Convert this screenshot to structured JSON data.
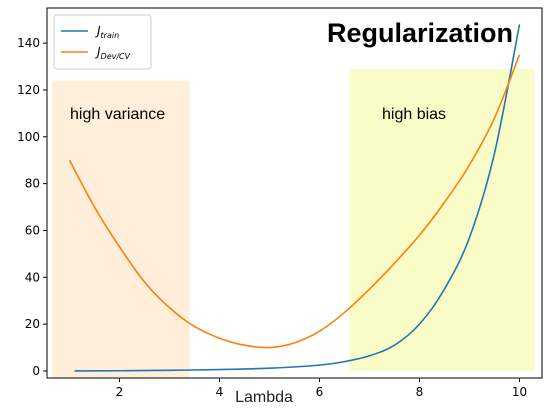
{
  "chart_data": {
    "type": "line",
    "title": "Regularization",
    "xlabel": "Lambda",
    "ylabel": "",
    "xlim": [
      0.55,
      10.45
    ],
    "ylim": [
      -3,
      155
    ],
    "xticks": [
      2,
      4,
      6,
      8,
      10
    ],
    "yticks": [
      0,
      20,
      40,
      60,
      80,
      100,
      120,
      140
    ],
    "legend_position": "top-left",
    "series": [
      {
        "name": "J_train",
        "name_main": "J",
        "name_sub": "train",
        "color": "#1f77b4",
        "x": [
          1.1,
          2,
          3,
          4,
          5,
          6,
          6.5,
          7,
          7.5,
          8,
          8.5,
          9,
          9.5,
          10
        ],
        "y": [
          0,
          0.1,
          0.3,
          0.6,
          1.2,
          2.5,
          4,
          6.5,
          11,
          20,
          35,
          57,
          93,
          148
        ]
      },
      {
        "name": "J_Dev/CV",
        "name_main": "J",
        "name_sub": "Dev/CV",
        "color": "#ff7f0e",
        "x": [
          1.0,
          1.5,
          2,
          2.5,
          3,
          3.5,
          4,
          4.5,
          5,
          5.5,
          6,
          6.5,
          7,
          7.5,
          8,
          8.5,
          9,
          9.5,
          10
        ],
        "y": [
          90,
          70,
          53,
          38,
          27,
          19,
          14,
          11,
          10,
          12,
          17,
          25,
          35,
          46,
          58,
          72,
          88,
          108,
          135
        ]
      }
    ],
    "regions": [
      {
        "label": "high variance",
        "color": "#ffeeda",
        "x": [
          0.65,
          3.4
        ],
        "y": [
          -3,
          124
        ]
      },
      {
        "label": "high bias",
        "color": "#fafcc8",
        "x": [
          6.6,
          10.3
        ],
        "y": [
          0,
          129
        ]
      }
    ]
  }
}
